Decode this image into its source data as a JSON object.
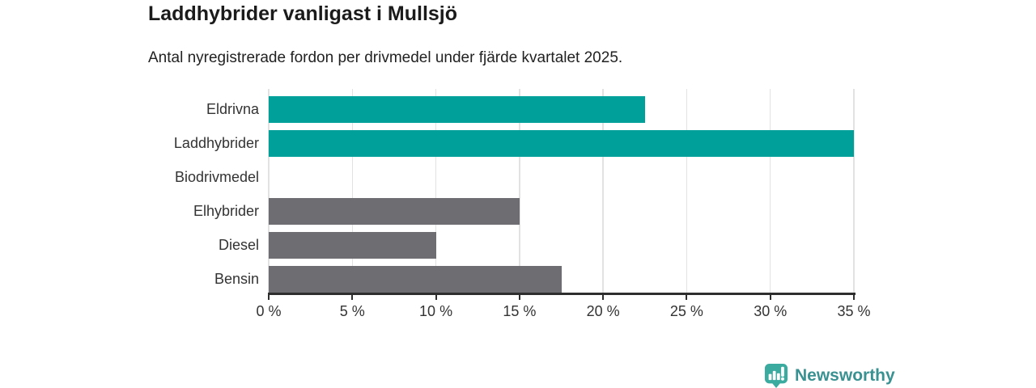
{
  "header": {
    "title": "Laddhybrider vanligast i Mullsjö",
    "subtitle": "Antal nyregistrerade fordon per drivmedel under fjärde kvartalet 2025."
  },
  "chart_data": {
    "type": "bar",
    "orientation": "horizontal",
    "title": "Laddhybrider vanligast i Mullsjö",
    "subtitle": "Antal nyregistrerade fordon per drivmedel under fjärde kvartalet 2025.",
    "categories": [
      "Eldrivna",
      "Laddhybrider",
      "Biodrivmedel",
      "Elhybrider",
      "Diesel",
      "Bensin"
    ],
    "values": [
      22.5,
      35,
      0,
      15,
      10,
      17.5
    ],
    "bar_colors": [
      "#00a09a",
      "#00a09a",
      "#6d6d72",
      "#6d6d72",
      "#6d6d72",
      "#6d6d72"
    ],
    "xlabel": "",
    "ylabel": "",
    "xlim": [
      0,
      35
    ],
    "x_tick_values": [
      0,
      5,
      10,
      15,
      20,
      25,
      30,
      35
    ],
    "x_tick_labels": [
      "0 %",
      "5 %",
      "10 %",
      "15 %",
      "20 %",
      "25 %",
      "30 %",
      "35 %"
    ],
    "grid": "vertical",
    "legend": "none",
    "unit": "%"
  },
  "colors": {
    "highlight_teal": "#00a09a",
    "neutral_gray": "#6d6d72",
    "gridline": "#e2e2e2",
    "axis": "#2e2e2e",
    "logo_icon_teal": "#3baa9f",
    "logo_text_teal": "#3a9191"
  },
  "footer": {
    "brand": "Newsworthy",
    "logo_icon": "newsworthy-bubble-barchart-icon"
  }
}
